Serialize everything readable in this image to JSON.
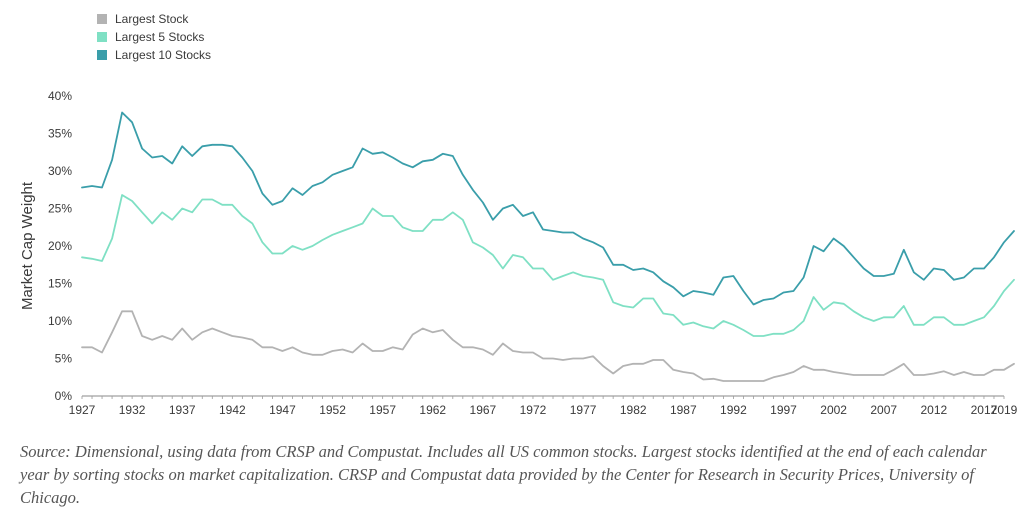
{
  "chart_data": {
    "type": "line",
    "ylabel": "Market Cap Weight",
    "xlabel": "",
    "ylim": [
      0,
      40
    ],
    "y_ticks": [
      "0%",
      "5%",
      "10%",
      "15%",
      "20%",
      "25%",
      "30%",
      "35%",
      "40%"
    ],
    "y_tick_values": [
      0,
      5,
      10,
      15,
      20,
      25,
      30,
      35,
      40
    ],
    "x_ticks": [
      "1927",
      "1932",
      "1937",
      "1942",
      "1947",
      "1952",
      "1957",
      "1962",
      "1967",
      "1972",
      "1977",
      "1982",
      "1987",
      "1992",
      "1997",
      "2002",
      "2007",
      "2012",
      "2017",
      "2019"
    ],
    "x_tick_values": [
      1927,
      1932,
      1937,
      1942,
      1947,
      1952,
      1957,
      1962,
      1967,
      1972,
      1977,
      1982,
      1987,
      1992,
      1997,
      2002,
      2007,
      2012,
      2017,
      2019
    ],
    "xlim": [
      1927,
      2019
    ],
    "grid": false,
    "legend_position": "top-left",
    "x_start": 1927,
    "series": [
      {
        "name": "Largest Stock",
        "color": "#b3b3b3",
        "values": [
          6.5,
          6.5,
          5.8,
          8.5,
          11.3,
          11.3,
          8,
          7.5,
          8,
          7.5,
          9,
          7.5,
          8.5,
          9,
          8.5,
          8,
          7.8,
          7.5,
          6.5,
          6.5,
          6,
          6.5,
          5.8,
          5.5,
          5.5,
          6,
          6.2,
          5.8,
          7,
          6,
          6,
          6.5,
          6.2,
          8.2,
          9,
          8.5,
          8.8,
          7.5,
          6.5,
          6.5,
          6.2,
          5.5,
          7,
          6,
          5.8,
          5.8,
          5,
          5,
          4.8,
          5,
          5,
          5.3,
          4,
          3,
          4,
          4.3,
          4.3,
          4.8,
          4.8,
          3.5,
          3.2,
          3,
          2.2,
          2.3,
          2,
          2,
          2,
          2,
          2,
          2.5,
          2.8,
          3.2,
          4,
          3.5,
          3.5,
          3.2,
          3,
          2.8,
          2.8,
          2.8,
          2.8,
          3.5,
          4.3,
          2.8,
          2.8,
          3,
          3.3,
          2.8,
          3.2,
          2.8,
          2.8,
          3.5,
          3.5,
          4.3
        ]
      },
      {
        "name": "Largest 5 Stocks",
        "color": "#7fe0c4",
        "values": [
          18.5,
          18.3,
          18,
          21,
          26.8,
          26,
          24.5,
          23,
          24.5,
          23.5,
          25,
          24.5,
          26.2,
          26.2,
          25.5,
          25.5,
          24,
          23,
          20.5,
          19,
          19,
          20,
          19.5,
          20,
          20.8,
          21.5,
          22,
          22.5,
          23,
          25,
          24,
          24,
          22.5,
          22,
          22,
          23.5,
          23.5,
          24.5,
          23.5,
          20.5,
          19.8,
          18.8,
          17,
          18.8,
          18.5,
          17,
          17,
          15.5,
          16,
          16.5,
          16,
          15.8,
          15.5,
          12.5,
          12,
          11.8,
          13,
          13,
          11,
          10.8,
          9.5,
          9.8,
          9.3,
          9,
          10,
          9.5,
          8.8,
          8,
          8,
          8.3,
          8.3,
          8.8,
          10,
          13.2,
          11.5,
          12.5,
          12.3,
          11.3,
          10.5,
          10,
          10.5,
          10.5,
          12,
          9.5,
          9.5,
          10.5,
          10.5,
          9.5,
          9.5,
          10,
          10.5,
          12,
          14,
          15.5
        ]
      },
      {
        "name": "Largest 10 Stocks",
        "color": "#3a9eaa",
        "values": [
          27.8,
          28,
          27.8,
          31.5,
          37.8,
          36.5,
          33,
          31.8,
          32,
          31,
          33.3,
          32,
          33.3,
          33.5,
          33.5,
          33.3,
          31.8,
          30,
          27,
          25.5,
          26,
          27.7,
          26.8,
          28,
          28.5,
          29.5,
          30,
          30.5,
          33,
          32.3,
          32.5,
          31.8,
          31,
          30.5,
          31.3,
          31.5,
          32.3,
          32,
          29.5,
          27.5,
          25.8,
          23.5,
          25,
          25.5,
          24,
          24.5,
          22.2,
          22,
          21.8,
          21.8,
          21,
          20.5,
          19.8,
          17.5,
          17.5,
          16.8,
          17,
          16.5,
          15.3,
          14.5,
          13.3,
          14,
          13.8,
          13.5,
          15.8,
          16,
          14,
          12.2,
          12.8,
          13,
          13.8,
          14,
          15.8,
          20,
          19.3,
          21,
          20,
          18.5,
          17,
          16,
          16,
          16.3,
          19.5,
          16.5,
          15.5,
          17,
          16.8,
          15.5,
          15.8,
          17,
          17,
          18.5,
          20.5,
          22
        ]
      }
    ]
  },
  "caption": "Source: Dimensional, using data from CRSP and Compustat. Includes all US common stocks. Largest stocks identified at the end of each calendar year by sorting stocks on market capitalization. CRSP and Compustat data provided by the Center for Research in Security Prices, University of Chicago."
}
